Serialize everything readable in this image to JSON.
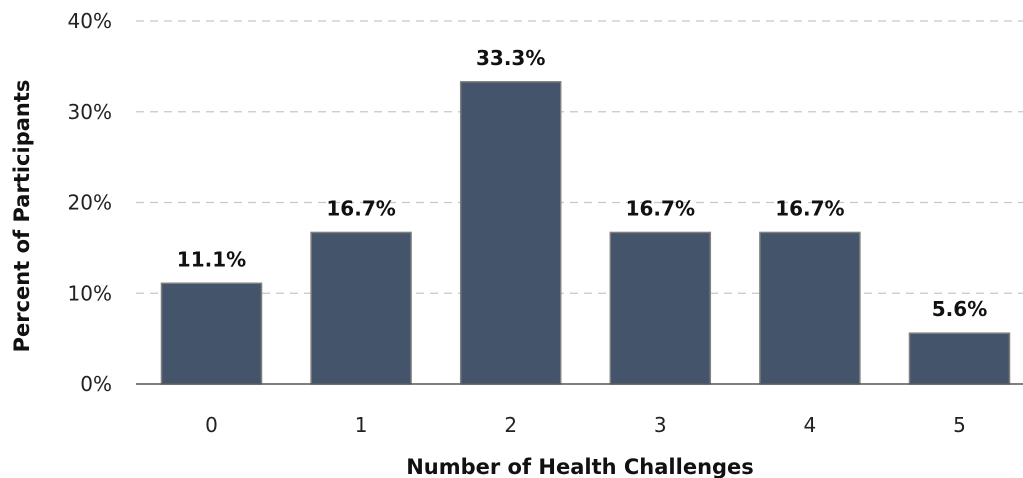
{
  "chart_data": {
    "type": "bar",
    "categories": [
      "0",
      "1",
      "2",
      "3",
      "4",
      "5"
    ],
    "values": [
      11.1,
      16.7,
      33.3,
      16.7,
      16.7,
      5.6
    ],
    "value_labels": [
      "11.1%",
      "16.7%",
      "33.3%",
      "16.7%",
      "16.7%",
      "5.6%"
    ],
    "xlabel": "Number of Health Challenges",
    "ylabel": "Percent of Participants",
    "ylim": [
      0,
      40
    ],
    "yticks": [
      0,
      10,
      20,
      30,
      40
    ],
    "ytick_labels": [
      "0%",
      "10%",
      "20%",
      "30%",
      "40%"
    ],
    "grid": true,
    "legend": false,
    "bar_color": "#44546a",
    "bar_edge_color": "#7f7f7f"
  }
}
